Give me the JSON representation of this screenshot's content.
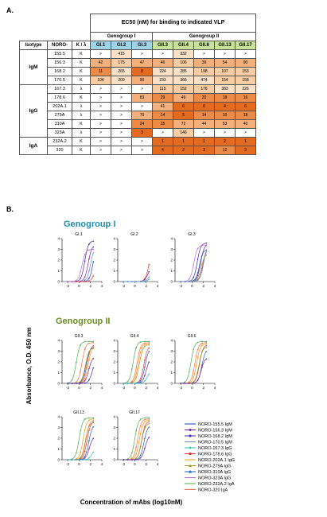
{
  "panel_a_label": "A.",
  "panel_b_label": "B.",
  "table": {
    "ec50_header": "EC50 (nM) for binding to indicated VLP",
    "group1_header": "Genogroup I",
    "group2_header": "Genogroup II",
    "col_isotype": "Isotype",
    "col_noro": "NORO-",
    "col_kl": "K / λ",
    "columns": [
      "GI.1",
      "GI.2",
      "GI.3",
      "GII.3",
      "GII.4",
      "GII.6",
      "GII.13",
      "GII.17"
    ],
    "column_colors": [
      "#9fd3e6",
      "#9fd3e6",
      "#9fd3e6",
      "#c9e29a",
      "#c9e29a",
      "#c9e29a",
      "#c9e29a",
      "#c9e29a"
    ],
    "isotypes": [
      {
        "name": "IgM",
        "rows": [
          {
            "noro": "155.5",
            "kl": "K",
            "cells": [
              ">",
              "415",
              ">",
              ">",
              "332",
              ">",
              ">",
              ">"
            ]
          },
          {
            "noro": "156.3",
            "kl": "K",
            "cells": [
              "42",
              "175",
              "47",
              "46",
              "106",
              "39",
              "54",
              "90"
            ]
          },
          {
            "noro": "168.2",
            "kl": "K",
            "cells": [
              "11",
              "265",
              "8",
              "224",
              "285",
              "198",
              "107",
              "153"
            ]
          },
          {
            "noro": "170.5",
            "kl": "K",
            "cells": [
              "104",
              "209",
              "90",
              "233",
              "366",
              "474",
              "154",
              "158"
            ]
          }
        ]
      },
      {
        "name": "IgG",
        "rows": [
          {
            "noro": "167.3",
            "kl": "λ",
            "cells": [
              ">",
              ">",
              ">",
              "115",
              "152",
              "176",
              "383",
              "226"
            ]
          },
          {
            "noro": "178.6",
            "kl": "K",
            "cells": [
              ">",
              ">",
              "83",
              "29",
              "49",
              "20",
              "18",
              "16"
            ]
          },
          {
            "noro": "202A.1",
            "kl": "λ",
            "cells": [
              ">",
              ">",
              ">",
              "41",
              "6",
              "6",
              "4",
              "6"
            ]
          },
          {
            "noro": "279A",
            "kl": "λ",
            "cells": [
              ">",
              ">",
              "70",
              "14",
              "5",
              "14",
              "10",
              "18"
            ]
          },
          {
            "noro": "310A",
            "kl": "K",
            "cells": [
              ">",
              ">",
              "24",
              "15",
              "72",
              "44",
              "53",
              "40"
            ]
          },
          {
            "noro": "323A",
            "kl": "λ",
            "cells": [
              ">",
              ">",
              "3",
              ">",
              "146",
              ">",
              ">",
              ">"
            ]
          }
        ]
      },
      {
        "name": "IgA",
        "rows": [
          {
            "noro": "232A.2",
            "kl": "K",
            "cells": [
              ">",
              ">",
              ">",
              "1",
              "1",
              "1",
              "2",
              "1"
            ]
          },
          {
            "noro": "320",
            "kl": "K",
            "cells": [
              ">",
              ">",
              ">",
              "4",
              "2",
              "3",
              "12",
              "3"
            ]
          }
        ]
      }
    ]
  },
  "genogroup_i_title": "Genogroup I",
  "genogroup_ii_title": "Genogroup II",
  "y_axis_title": "Absorbance, O.D. 450 nm",
  "x_axis_title": "Concentration of mAbs (log10nM)",
  "y_ticks": [
    "0",
    "1",
    "2",
    "3",
    "4"
  ],
  "x_ticks": [
    "-2",
    "0",
    "2",
    "4"
  ],
  "legend": [
    {
      "label": "NORO-155.5 IgM",
      "color": "#1f3fbf",
      "marker": "none"
    },
    {
      "label": "NORO-156.3 IgM",
      "color": "#7b1fa2",
      "marker": "circle"
    },
    {
      "label": "NORO-168.2 IgM",
      "color": "#3b2ea8",
      "marker": "circle"
    },
    {
      "label": "NORO-170.5 IgM",
      "color": "#5a8fd1",
      "marker": "none"
    },
    {
      "label": "NORO-167.3 IgG",
      "color": "#2ec4b6",
      "marker": "diamond"
    },
    {
      "label": "NORO-178.6 IgG",
      "color": "#e53935",
      "marker": "square"
    },
    {
      "label": "NORO-202A.1 IgG",
      "color": "#f39c12",
      "marker": "none"
    },
    {
      "label": "NORO-279A IgG",
      "color": "#9e9e2e",
      "marker": "triangle"
    },
    {
      "label": "NORO-310A IgG",
      "color": "#1565c0",
      "marker": "triangle"
    },
    {
      "label": "NORO-323A IgG",
      "color": "#b56fd6",
      "marker": "none"
    },
    {
      "label": "NORO-232A.2 IgA",
      "color": "#4caf50",
      "marker": "none"
    },
    {
      "label": "NORO-320 IgA",
      "color": "#ff7043",
      "marker": "none"
    }
  ],
  "chart_data": [
    {
      "type": "line",
      "title": "GI.1",
      "ylim": [
        0,
        4
      ],
      "xlim": [
        -3,
        4
      ],
      "series": [
        {
          "color": "#1f3fbf",
          "ec50": 2.5,
          "top": 3.7
        },
        {
          "color": "#7b1fa2",
          "ec50": 1.6,
          "top": 3.4
        },
        {
          "color": "#3b2ea8",
          "ec50": 1.0,
          "top": 3.8
        },
        {
          "color": "#5a8fd1",
          "ec50": 2.0,
          "top": 3.2
        },
        {
          "color": "#e53935",
          "ec50": 2.6,
          "top": 1.2
        },
        {
          "color": "#b56fd6",
          "ec50": 0.5,
          "top": 3.0
        }
      ]
    },
    {
      "type": "line",
      "title": "GI.2",
      "ylim": [
        0,
        4
      ],
      "xlim": [
        -3,
        4
      ],
      "series": [
        {
          "color": "#e53935",
          "ec50": 2.5,
          "top": 3.2
        },
        {
          "color": "#7b1fa2",
          "ec50": 2.3,
          "top": 1.4
        },
        {
          "color": "#2ec4b6",
          "ec50": 2.8,
          "top": 0.8
        },
        {
          "color": "#5a8fd1",
          "ec50": 2.6,
          "top": 1.0
        }
      ]
    },
    {
      "type": "line",
      "title": "GI.3",
      "ylim": [
        0,
        4
      ],
      "xlim": [
        -3,
        4
      ],
      "series": [
        {
          "color": "#3b2ea8",
          "ec50": 0.9,
          "top": 3.6
        },
        {
          "color": "#7b1fa2",
          "ec50": 1.5,
          "top": 3.5
        },
        {
          "color": "#b56fd6",
          "ec50": 0.3,
          "top": 3.4
        },
        {
          "color": "#e53935",
          "ec50": 1.9,
          "top": 3.2
        },
        {
          "color": "#1565c0",
          "ec50": 1.3,
          "top": 3.0
        },
        {
          "color": "#9e9e2e",
          "ec50": 1.6,
          "top": 2.6
        },
        {
          "color": "#5a8fd1",
          "ec50": 2.0,
          "top": 3.3
        }
      ]
    },
    {
      "type": "line",
      "title": "GII.3",
      "ylim": [
        0,
        4
      ],
      "xlim": [
        -3,
        4
      ],
      "series": [
        {
          "color": "#4caf50",
          "ec50": -0.5,
          "top": 3.9
        },
        {
          "color": "#ff7043",
          "ec50": 0.5,
          "top": 3.8
        },
        {
          "color": "#e53935",
          "ec50": 1.4,
          "top": 3.6
        },
        {
          "color": "#1565c0",
          "ec50": 1.2,
          "top": 3.4
        },
        {
          "color": "#9e9e2e",
          "ec50": 1.1,
          "top": 3.3
        },
        {
          "color": "#f39c12",
          "ec50": 1.6,
          "top": 3.5
        },
        {
          "color": "#7b1fa2",
          "ec50": 1.7,
          "top": 2.5
        },
        {
          "color": "#3b2ea8",
          "ec50": 2.3,
          "top": 2.2
        }
      ]
    },
    {
      "type": "line",
      "title": "GII.4",
      "ylim": [
        0,
        4
      ],
      "xlim": [
        -3,
        4
      ],
      "series": [
        {
          "color": "#4caf50",
          "ec50": -0.3,
          "top": 3.9
        },
        {
          "color": "#f39c12",
          "ec50": 0.6,
          "top": 3.7
        },
        {
          "color": "#9e9e2e",
          "ec50": 0.8,
          "top": 3.6
        },
        {
          "color": "#ff7043",
          "ec50": 0.4,
          "top": 3.8
        },
        {
          "color": "#e53935",
          "ec50": 1.6,
          "top": 3.5
        },
        {
          "color": "#1565c0",
          "ec50": 1.8,
          "top": 3.3
        },
        {
          "color": "#7b1fa2",
          "ec50": 2.0,
          "top": 2.4
        },
        {
          "color": "#2ec4b6",
          "ec50": 2.2,
          "top": 1.2
        }
      ]
    },
    {
      "type": "line",
      "title": "GII.6",
      "ylim": [
        0,
        4
      ],
      "xlim": [
        -3,
        4
      ],
      "series": [
        {
          "color": "#4caf50",
          "ec50": -0.2,
          "top": 3.9
        },
        {
          "color": "#ff7043",
          "ec50": 0.5,
          "top": 3.8
        },
        {
          "color": "#f39c12",
          "ec50": 0.8,
          "top": 3.7
        },
        {
          "color": "#e53935",
          "ec50": 1.3,
          "top": 3.6
        },
        {
          "color": "#9e9e2e",
          "ec50": 1.2,
          "top": 3.4
        },
        {
          "color": "#1565c0",
          "ec50": 1.7,
          "top": 3.2
        },
        {
          "color": "#7b1fa2",
          "ec50": 1.6,
          "top": 2.4
        }
      ]
    },
    {
      "type": "line",
      "title": "GII.13",
      "ylim": [
        0,
        4
      ],
      "xlim": [
        -3,
        4
      ],
      "series": [
        {
          "color": "#4caf50",
          "ec50": 0.0,
          "top": 3.9
        },
        {
          "color": "#f39c12",
          "ec50": 0.7,
          "top": 3.8
        },
        {
          "color": "#ff7043",
          "ec50": 1.2,
          "top": 3.7
        },
        {
          "color": "#e53935",
          "ec50": 1.4,
          "top": 3.6
        },
        {
          "color": "#9e9e2e",
          "ec50": 1.1,
          "top": 3.5
        },
        {
          "color": "#1565c0",
          "ec50": 1.7,
          "top": 3.3
        },
        {
          "color": "#7b1fa2",
          "ec50": 1.8,
          "top": 2.2
        },
        {
          "color": "#2ec4b6",
          "ec50": 2.3,
          "top": 1.1
        }
      ]
    },
    {
      "type": "line",
      "title": "GII.17",
      "ylim": [
        0,
        4
      ],
      "xlim": [
        -3,
        4
      ],
      "series": [
        {
          "color": "#4caf50",
          "ec50": 0.0,
          "top": 3.9
        },
        {
          "color": "#ff7043",
          "ec50": 0.5,
          "top": 3.8
        },
        {
          "color": "#f39c12",
          "ec50": 0.8,
          "top": 3.7
        },
        {
          "color": "#e53935",
          "ec50": 1.2,
          "top": 3.6
        },
        {
          "color": "#9e9e2e",
          "ec50": 1.2,
          "top": 3.4
        },
        {
          "color": "#1565c0",
          "ec50": 1.6,
          "top": 3.2
        },
        {
          "color": "#7b1fa2",
          "ec50": 1.8,
          "top": 2.3
        }
      ]
    }
  ]
}
